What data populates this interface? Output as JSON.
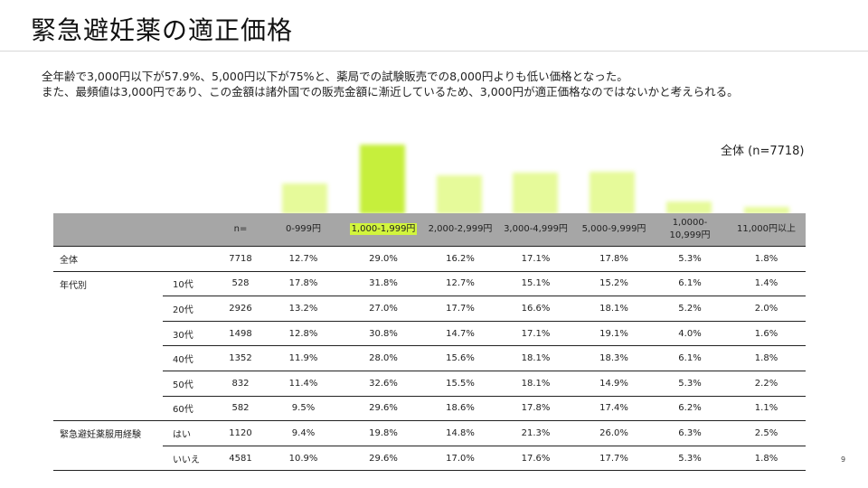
{
  "title": "緊急避妊薬の適正価格",
  "description": [
    "全年齢で3,000円以下が57.9%、5,000円以下が75%と、薬局での試験販売での8,000円よりも低い価格となった。",
    "また、最頻値は3,000円であり、この金額は諸外国での販売金額に漸近しているため、3,000円が適正価格なのではないかと考えられる。"
  ],
  "chart_label": "全体 (n=7718)",
  "highlight_color": "#c6ef3c",
  "table": {
    "headers": [
      "",
      "",
      "n=",
      "0-999円",
      "1,000-1,999円",
      "2,000-2,999円",
      "3,000-4,999円",
      "5,000-9,999円",
      "1,0000-\n10,999円",
      "11,000円以上"
    ],
    "rows": [
      {
        "group": "全体",
        "sub": "",
        "n": "7718",
        "v": [
          "12.7%",
          "29.0%",
          "16.2%",
          "17.1%",
          "17.8%",
          "5.3%",
          "1.8%"
        ]
      },
      {
        "group": "年代別",
        "sub": "10代",
        "n": "528",
        "v": [
          "17.8%",
          "31.8%",
          "12.7%",
          "15.1%",
          "15.2%",
          "6.1%",
          "1.4%"
        ]
      },
      {
        "group": "",
        "sub": "20代",
        "n": "2926",
        "v": [
          "13.2%",
          "27.0%",
          "17.7%",
          "16.6%",
          "18.1%",
          "5.2%",
          "2.0%"
        ]
      },
      {
        "group": "",
        "sub": "30代",
        "n": "1498",
        "v": [
          "12.8%",
          "30.8%",
          "14.7%",
          "17.1%",
          "19.1%",
          "4.0%",
          "1.6%"
        ]
      },
      {
        "group": "",
        "sub": "40代",
        "n": "1352",
        "v": [
          "11.9%",
          "28.0%",
          "15.6%",
          "18.1%",
          "18.3%",
          "6.1%",
          "1.8%"
        ]
      },
      {
        "group": "",
        "sub": "50代",
        "n": "832",
        "v": [
          "11.4%",
          "32.6%",
          "15.5%",
          "18.1%",
          "14.9%",
          "5.3%",
          "2.2%"
        ]
      },
      {
        "group": "",
        "sub": "60代",
        "n": "582",
        "v": [
          "9.5%",
          "29.6%",
          "18.6%",
          "17.8%",
          "17.4%",
          "6.2%",
          "1.1%"
        ]
      },
      {
        "group": "緊急避妊薬服用経験",
        "sub": "はい",
        "n": "1120",
        "v": [
          "9.4%",
          "19.8%",
          "14.8%",
          "21.3%",
          "26.0%",
          "6.3%",
          "2.5%"
        ]
      },
      {
        "group": "",
        "sub": "いいえ",
        "n": "4581",
        "v": [
          "10.9%",
          "29.6%",
          "17.0%",
          "17.6%",
          "17.7%",
          "5.3%",
          "1.8%"
        ]
      }
    ]
  },
  "chart_data": {
    "type": "bar",
    "categories": [
      "0-999円",
      "1,000-1,999円",
      "2,000-2,999円",
      "3,000-4,999円",
      "5,000-9,999円",
      "1,0000-10,999円",
      "11,000円以上"
    ],
    "values": [
      12.7,
      29.0,
      16.2,
      17.1,
      17.8,
      5.3,
      1.8
    ],
    "ylim": [
      0,
      30
    ]
  },
  "page_number": "9"
}
